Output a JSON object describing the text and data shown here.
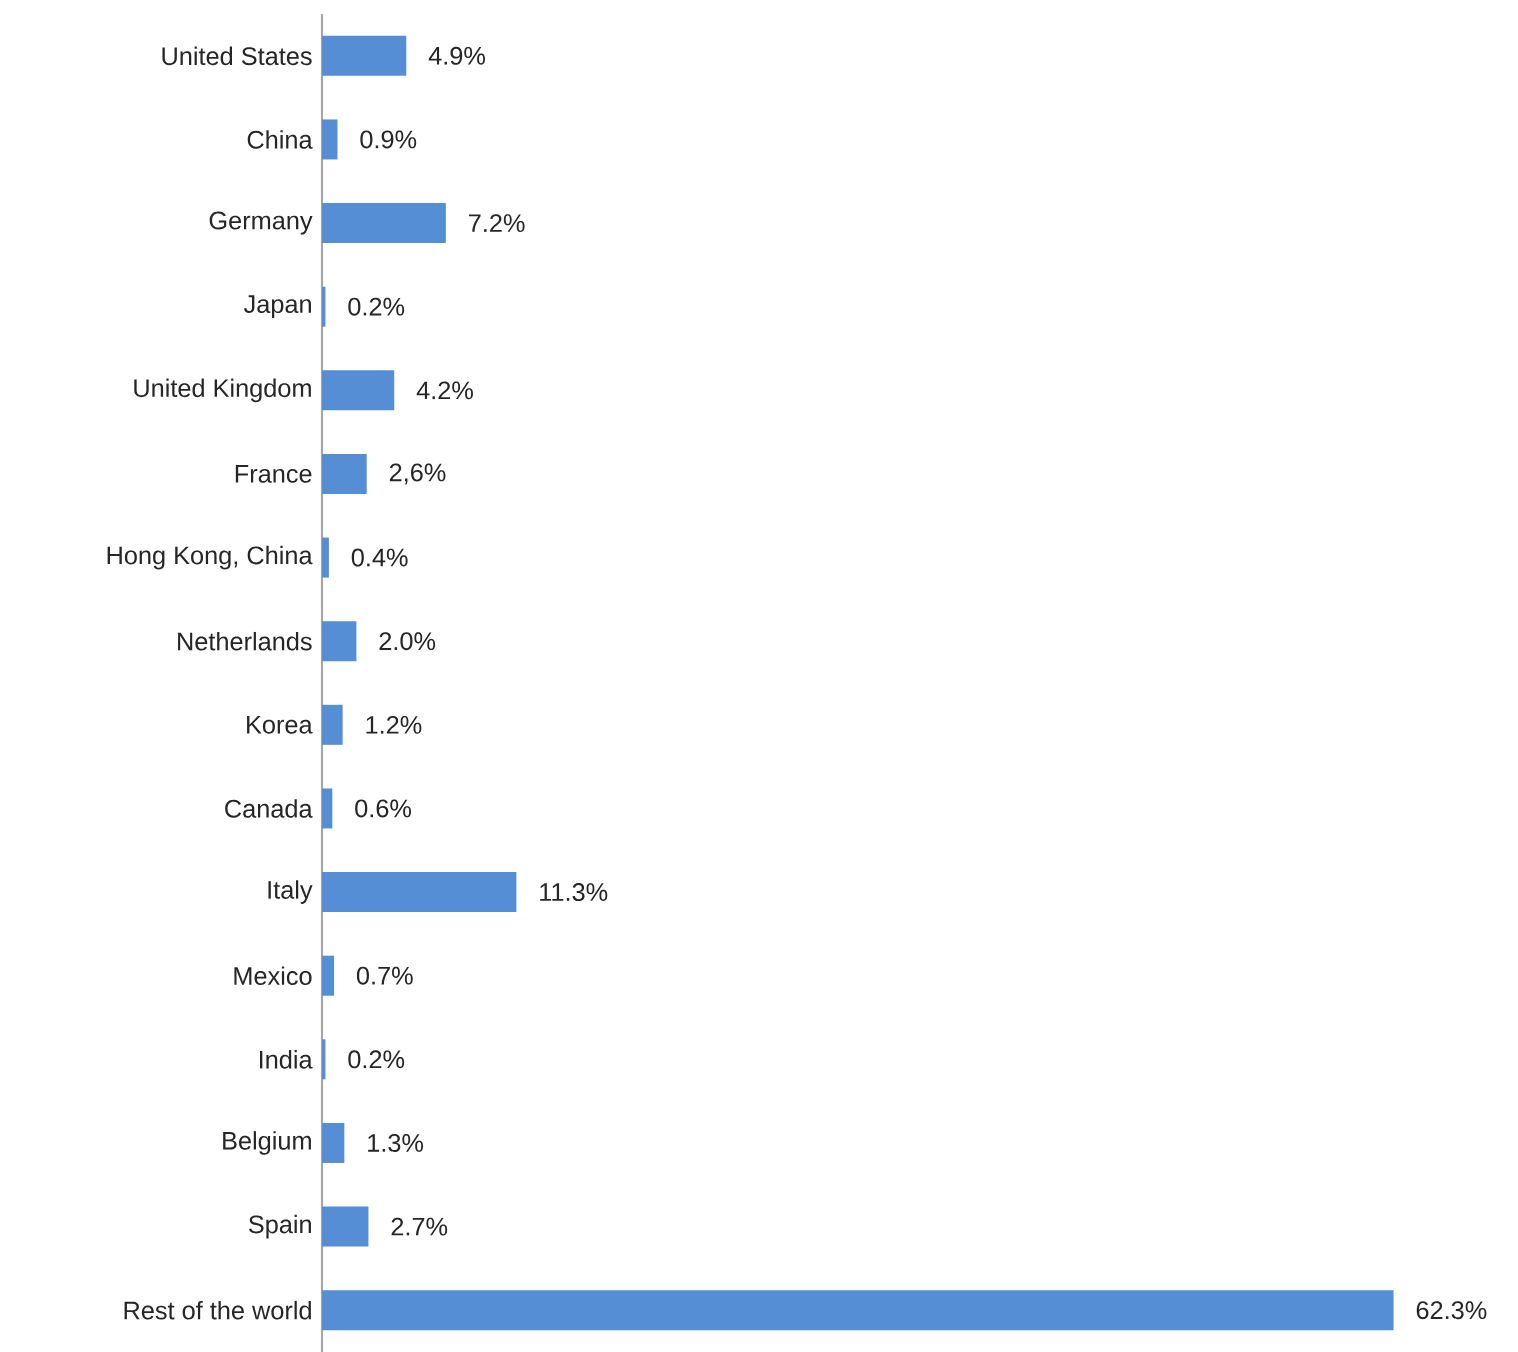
{
  "chart_data": {
    "type": "bar",
    "orientation": "horizontal",
    "categories": [
      "United States",
      "China",
      "Germany",
      "Japan",
      "United Kingdom",
      "France",
      "Hong Kong, China",
      "Netherlands",
      "Korea",
      "Canada",
      "Italy",
      "Mexico",
      "India",
      "Belgium",
      "Spain",
      "Rest of the world"
    ],
    "values": [
      4.9,
      0.9,
      7.2,
      0.2,
      4.2,
      2.6,
      0.4,
      2.0,
      1.2,
      0.6,
      11.3,
      0.7,
      0.2,
      1.3,
      2.7,
      62.3
    ],
    "value_labels": [
      "4.9%",
      "0.9%",
      "7.2%",
      "0.2%",
      "4.2%",
      "2,6%",
      "0.4%",
      "2.0%",
      "1.2%",
      "0.6%",
      "11.3%",
      "0.7%",
      "0.2%",
      "1.3%",
      "2.7%",
      "62.3%"
    ],
    "color": "#558ed5"
  }
}
